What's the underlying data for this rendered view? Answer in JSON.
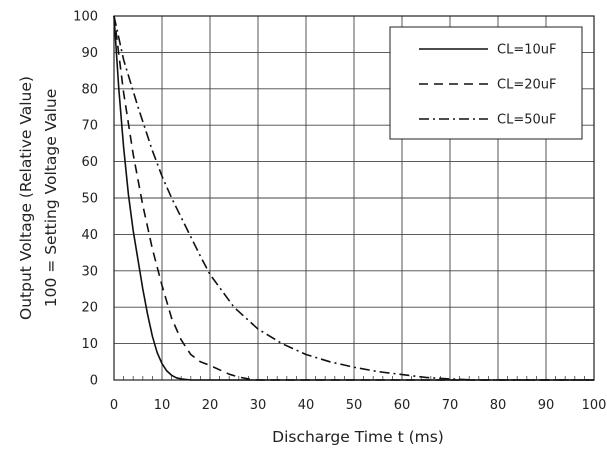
{
  "chart_data": {
    "type": "line",
    "title": "",
    "xlabel": "Discharge Time t (ms)",
    "ylabel_line1": "Output Voltage (Relative Value)",
    "ylabel_line2": "100 = Setting Voltage Value",
    "xlim": [
      0,
      100
    ],
    "ylim": [
      0,
      100
    ],
    "x_ticks": [
      "0",
      "10",
      "20",
      "30",
      "40",
      "50",
      "60",
      "70",
      "80",
      "90",
      "100"
    ],
    "y_ticks": [
      "0",
      "10",
      "20",
      "30",
      "40",
      "50",
      "60",
      "70",
      "80",
      "90",
      "100"
    ],
    "grid": true,
    "legend_position": "top-right",
    "series": [
      {
        "name": "CL=10uF",
        "style": "solid",
        "points": [
          [
            0,
            100
          ],
          [
            1,
            80
          ],
          [
            2,
            64
          ],
          [
            3,
            51
          ],
          [
            4,
            41
          ],
          [
            5,
            33
          ],
          [
            6,
            25
          ],
          [
            7,
            18
          ],
          [
            8,
            12
          ],
          [
            9,
            7.5
          ],
          [
            10,
            4.5
          ],
          [
            11,
            2.5
          ],
          [
            12,
            1.3
          ],
          [
            13,
            0.6
          ],
          [
            14,
            0.3
          ],
          [
            16,
            0
          ],
          [
            100,
            0
          ]
        ]
      },
      {
        "name": "CL=20uF",
        "style": "dashed",
        "points": [
          [
            0,
            100
          ],
          [
            2,
            79
          ],
          [
            4,
            62
          ],
          [
            6,
            48
          ],
          [
            8,
            36
          ],
          [
            10,
            26
          ],
          [
            12,
            17
          ],
          [
            14,
            11
          ],
          [
            16,
            7
          ],
          [
            18,
            5
          ],
          [
            20,
            4
          ],
          [
            22,
            2.8
          ],
          [
            24,
            1.6
          ],
          [
            26,
            0.8
          ],
          [
            28,
            0.3
          ],
          [
            30,
            0
          ],
          [
            100,
            0
          ]
        ]
      },
      {
        "name": "CL=50uF",
        "style": "dashdot",
        "points": [
          [
            0,
            100
          ],
          [
            2,
            88
          ],
          [
            5,
            75
          ],
          [
            8,
            63
          ],
          [
            10,
            56
          ],
          [
            12,
            50
          ],
          [
            15,
            42
          ],
          [
            18,
            34
          ],
          [
            20,
            29
          ],
          [
            25,
            20
          ],
          [
            30,
            14
          ],
          [
            35,
            10
          ],
          [
            40,
            7
          ],
          [
            45,
            5
          ],
          [
            50,
            3.5
          ],
          [
            55,
            2.3
          ],
          [
            60,
            1.5
          ],
          [
            65,
            0.7
          ],
          [
            70,
            0.3
          ],
          [
            75,
            0
          ],
          [
            100,
            0
          ]
        ]
      }
    ]
  }
}
